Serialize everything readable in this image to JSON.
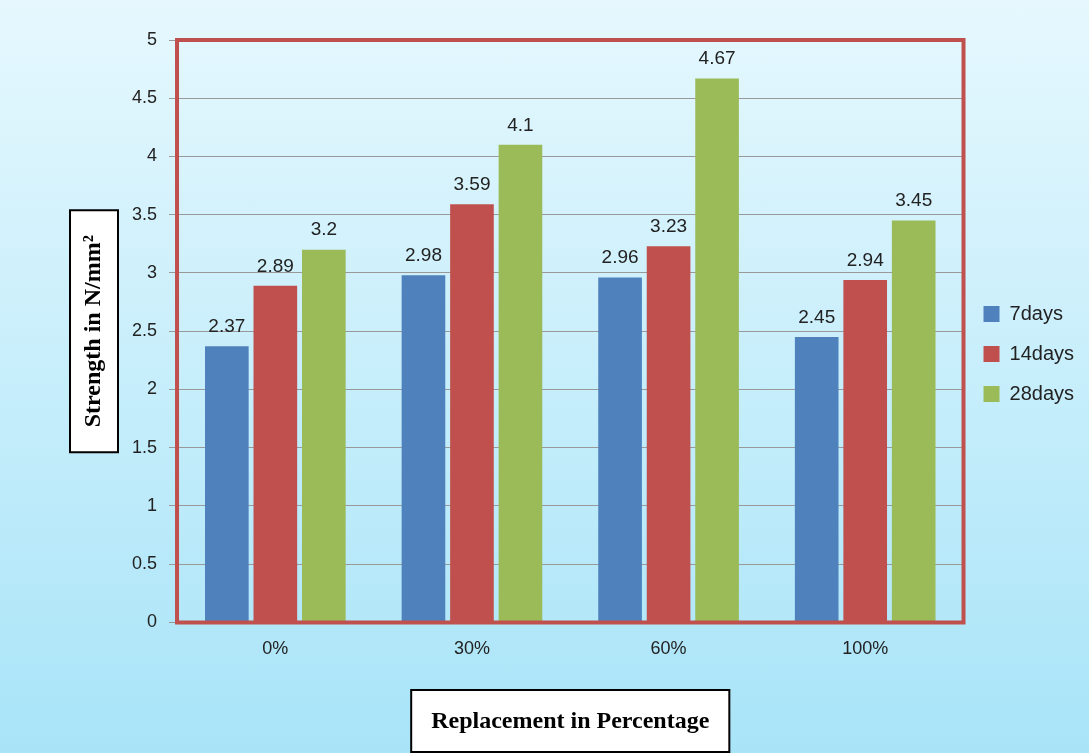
{
  "chart_data": {
    "type": "bar",
    "xlabel": "Replacement in Percentage",
    "ylabel": "Strength in N/mm²",
    "categories": [
      "0%",
      "30%",
      "60%",
      "100%"
    ],
    "series": [
      {
        "name": "7days",
        "color": "#4f81bd",
        "values": [
          2.37,
          2.98,
          2.96,
          2.45
        ]
      },
      {
        "name": "14days",
        "color": "#c0504d",
        "values": [
          2.89,
          3.59,
          3.23,
          2.94
        ]
      },
      {
        "name": "28days",
        "color": "#9bbb59",
        "values": [
          3.2,
          4.1,
          4.67,
          3.45
        ]
      }
    ],
    "ylim": [
      0,
      5
    ],
    "yticks": [
      0,
      0.5,
      1,
      1.5,
      2,
      2.5,
      3,
      3.5,
      4,
      4.5,
      5
    ],
    "grid": "y",
    "legend": "right",
    "data_labels": true
  }
}
